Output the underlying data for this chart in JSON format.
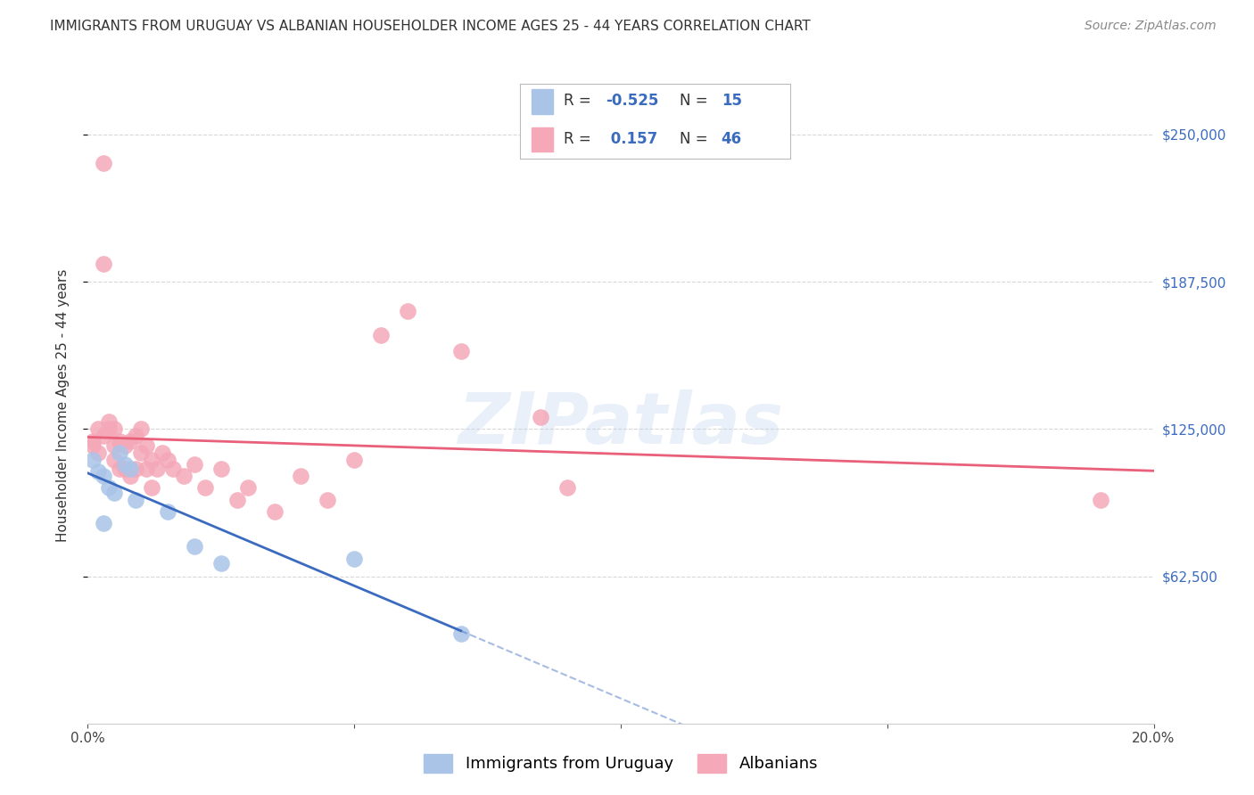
{
  "title": "IMMIGRANTS FROM URUGUAY VS ALBANIAN HOUSEHOLDER INCOME AGES 25 - 44 YEARS CORRELATION CHART",
  "source": "Source: ZipAtlas.com",
  "ylabel": "Householder Income Ages 25 - 44 years",
  "xlim": [
    0.0,
    0.2
  ],
  "ylim": [
    0,
    270000
  ],
  "yticks": [
    62500,
    125000,
    187500,
    250000
  ],
  "ytick_labels": [
    "$62,500",
    "$125,000",
    "$187,500",
    "$250,000"
  ],
  "xticks": [
    0.0,
    0.05,
    0.1,
    0.15,
    0.2
  ],
  "xtick_labels": [
    "0.0%",
    "",
    "",
    "",
    "20.0%"
  ],
  "watermark": "ZIPatlas",
  "background_color": "#ffffff",
  "grid_color": "#d8d8d8",
  "uruguay_color": "#aac4e8",
  "albanian_color": "#f4a8b8",
  "uruguay_line_color": "#3b6bbf",
  "albanian_line_color": "#e8607a",
  "R_uruguay": -0.525,
  "N_uruguay": 15,
  "R_albanian": 0.157,
  "N_albanian": 46,
  "uruguay_scatter_x": [
    0.001,
    0.002,
    0.003,
    0.004,
    0.005,
    0.006,
    0.007,
    0.008,
    0.009,
    0.015,
    0.02,
    0.025,
    0.05,
    0.07,
    0.003
  ],
  "uruguay_scatter_y": [
    112000,
    107000,
    105000,
    100000,
    98000,
    115000,
    110000,
    108000,
    95000,
    90000,
    75000,
    68000,
    70000,
    38000,
    85000
  ],
  "albanian_scatter_x": [
    0.001,
    0.001,
    0.002,
    0.002,
    0.003,
    0.003,
    0.004,
    0.004,
    0.005,
    0.005,
    0.005,
    0.006,
    0.006,
    0.007,
    0.007,
    0.008,
    0.008,
    0.009,
    0.009,
    0.01,
    0.01,
    0.011,
    0.011,
    0.012,
    0.012,
    0.013,
    0.014,
    0.015,
    0.016,
    0.018,
    0.02,
    0.022,
    0.025,
    0.028,
    0.03,
    0.035,
    0.04,
    0.045,
    0.05,
    0.055,
    0.06,
    0.07,
    0.085,
    0.09,
    0.19,
    0.003
  ],
  "albanian_scatter_y": [
    120000,
    118000,
    125000,
    115000,
    238000,
    122000,
    125000,
    128000,
    118000,
    125000,
    112000,
    120000,
    108000,
    118000,
    108000,
    120000,
    105000,
    122000,
    108000,
    115000,
    125000,
    118000,
    108000,
    112000,
    100000,
    108000,
    115000,
    112000,
    108000,
    105000,
    110000,
    100000,
    108000,
    95000,
    100000,
    90000,
    105000,
    95000,
    112000,
    165000,
    175000,
    158000,
    130000,
    100000,
    95000,
    195000
  ],
  "title_fontsize": 11,
  "axis_label_fontsize": 11,
  "tick_fontsize": 11,
  "legend_fontsize": 13,
  "source_fontsize": 10,
  "scatter_size": 180
}
